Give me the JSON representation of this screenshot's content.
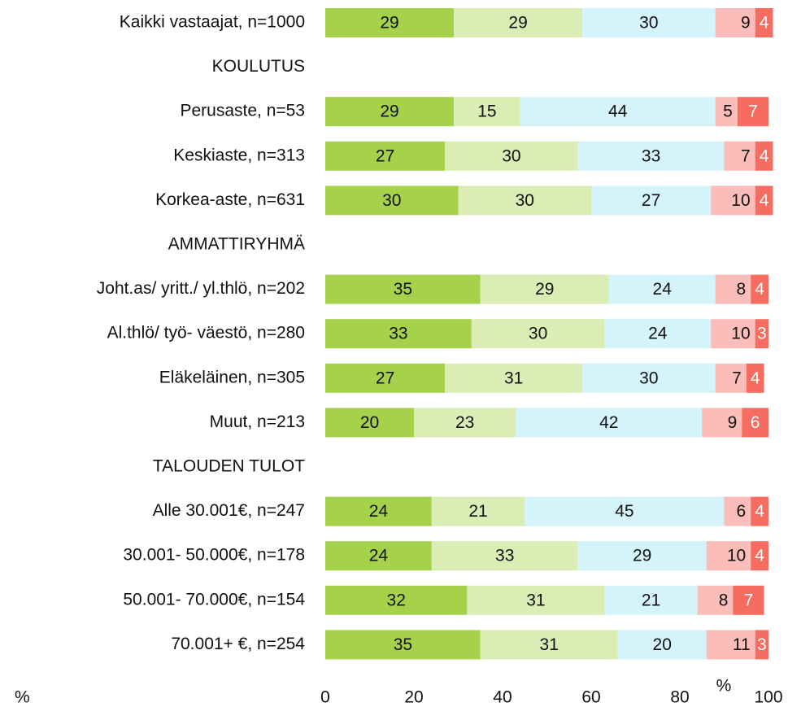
{
  "chart_data": {
    "type": "stacked_barh",
    "categories": [
      "Kaikki vastaajat, n=1000",
      "KOULUTUS",
      "Perusaste, n=53",
      "Keskiaste, n=313",
      "Korkea-aste, n=631",
      "AMMATTIRYHMÄ",
      "Joht.as/ yritt./ yl.thlö, n=202",
      "Al.thlö/ työ- väestö, n=280",
      "Eläkeläinen, n=305",
      "Muut, n=213",
      "TALOUDEN TULOT",
      "Alle 30.001€, n=247",
      "30.001- 50.000€, n=178",
      "50.001- 70.000€, n=154",
      "70.001+ €, n=254"
    ],
    "series": [
      {
        "color": "#a6d14b",
        "values": [
          29,
          null,
          29,
          27,
          30,
          null,
          35,
          33,
          27,
          20,
          null,
          24,
          24,
          32,
          35
        ]
      },
      {
        "color": "#d9edb5",
        "values": [
          29,
          null,
          15,
          30,
          30,
          null,
          29,
          30,
          31,
          23,
          null,
          21,
          33,
          31,
          31
        ]
      },
      {
        "color": "#d5f3fb",
        "values": [
          30,
          null,
          44,
          33,
          27,
          null,
          24,
          24,
          30,
          42,
          null,
          45,
          29,
          21,
          20
        ]
      },
      {
        "color": "#fbbdb9",
        "values": [
          9,
          null,
          5,
          7,
          10,
          null,
          8,
          10,
          7,
          9,
          null,
          6,
          10,
          8,
          11
        ]
      },
      {
        "color": "#f66c60",
        "values": [
          4,
          null,
          7,
          4,
          4,
          null,
          4,
          3,
          4,
          6,
          null,
          4,
          4,
          7,
          3
        ]
      }
    ],
    "xlim": [
      0,
      100
    ],
    "xticks": [
      0,
      20,
      40,
      60,
      80,
      100
    ],
    "grid": false,
    "annotations": [
      "%",
      "%"
    ]
  }
}
